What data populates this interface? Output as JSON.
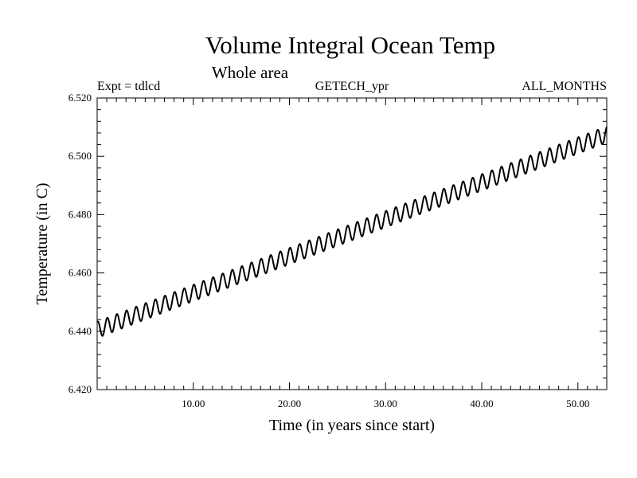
{
  "chart_data": {
    "type": "line",
    "title": "Volume Integral Ocean Temp",
    "subtitle": "Whole area",
    "corner_left": "Expt = tdlcd",
    "corner_center": "GETECH_ypr",
    "corner_right": "ALL_MONTHS",
    "xlabel": "Time (in years since start)",
    "ylabel": "Temperature (in C)",
    "xlim": [
      0,
      53
    ],
    "ylim": [
      6.42,
      6.52
    ],
    "xticks": [
      10,
      20,
      30,
      40,
      50
    ],
    "xtick_labels": [
      "10.00",
      "20.00",
      "30.00",
      "40.00",
      "50.00"
    ],
    "yticks": [
      6.42,
      6.44,
      6.46,
      6.48,
      6.5,
      6.52
    ],
    "ytick_labels": [
      "6.420",
      "6.440",
      "6.460",
      "6.480",
      "6.500",
      "6.520"
    ],
    "grid": false,
    "series": [
      {
        "name": "Volume Integral Ocean Temp",
        "trend_start": [
          0,
          6.4405
        ],
        "trend_end": [
          53,
          6.5075
        ],
        "seasonal_amplitude": 0.0028,
        "cycles_per_year": 1,
        "samples_per_year": 12,
        "color": "#000000"
      }
    ]
  }
}
